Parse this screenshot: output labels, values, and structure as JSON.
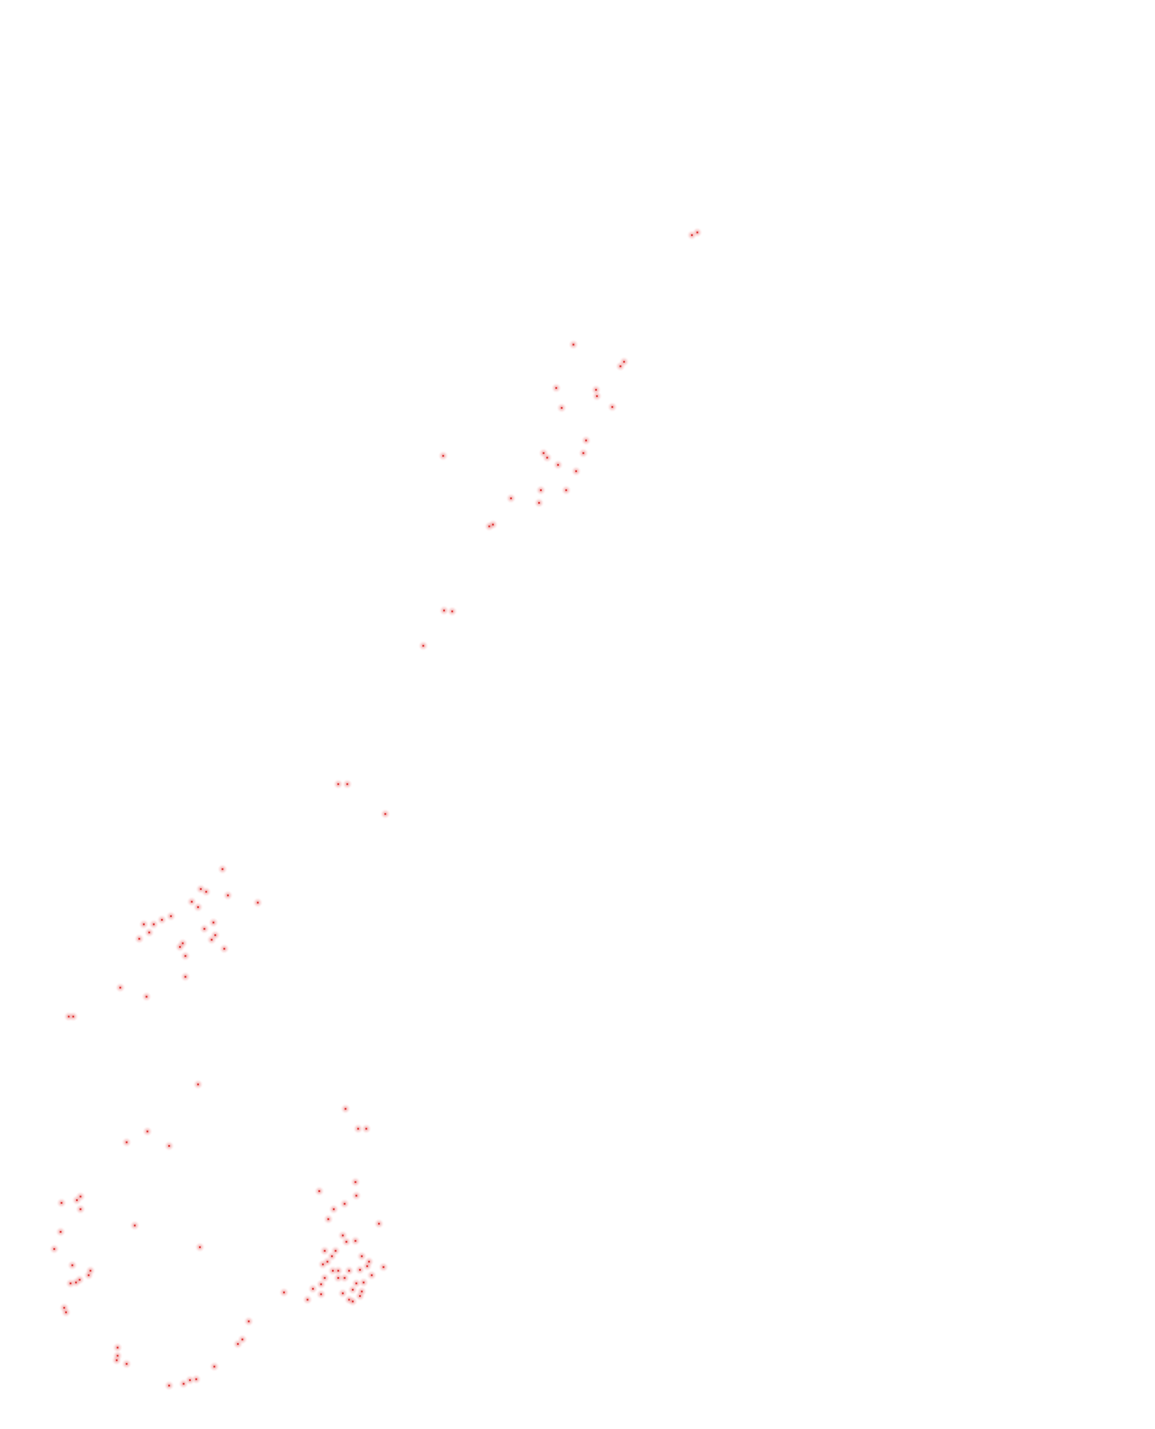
{
  "map": {
    "background": "#ffffff",
    "marker_fill": "#e04040",
    "marker_halo": "#f4b7b7",
    "marker_icon": "dot-marker-icon",
    "marker_count": 148
  }
}
